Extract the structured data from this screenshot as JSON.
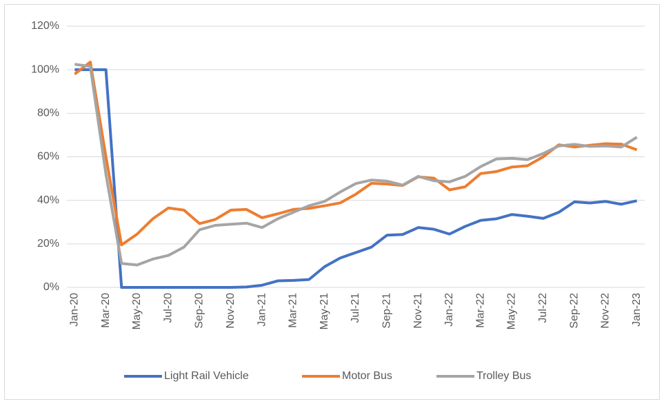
{
  "chart_data": {
    "type": "line",
    "categories": [
      "Jan-20",
      null,
      "Mar-20",
      null,
      "May-20",
      null,
      "Jul-20",
      null,
      "Sep-20",
      null,
      "Nov-20",
      null,
      "Jan-21",
      null,
      "Mar-21",
      null,
      "May-21",
      null,
      "Jul-21",
      null,
      "Sep-21",
      null,
      "Nov-21",
      null,
      "Jan-22",
      null,
      "Mar-22",
      null,
      "May-22",
      null,
      "Jul-22",
      null,
      "Sep-22",
      null,
      "Nov-22",
      null,
      "Jan-23"
    ],
    "series": [
      {
        "name": "Light Rail Vehicle",
        "color": "#4472c4",
        "values": [
          100,
          100,
          100,
          0,
          0,
          0,
          0,
          0,
          0,
          0,
          0,
          0.2,
          1,
          3,
          3.2,
          3.6,
          9.5,
          13.5,
          16,
          18.5,
          24,
          24.3,
          27.5,
          26.7,
          24.5,
          28,
          30.8,
          31.5,
          33.5,
          32.7,
          31.7,
          34.5,
          39.3,
          38.8,
          39.5,
          38.2,
          39.8
        ]
      },
      {
        "name": "Motor Bus",
        "color": "#ed7d31",
        "values": [
          98,
          103.5,
          60,
          19.5,
          24.5,
          31.5,
          36.5,
          35.5,
          29.3,
          31.2,
          35.5,
          35.8,
          32,
          33.8,
          35.8,
          36.3,
          37.5,
          38.8,
          42.8,
          47.8,
          47.5,
          46.8,
          50.8,
          50.2,
          44.8,
          46.2,
          52.3,
          53.2,
          55.3,
          55.9,
          60,
          65.5,
          64.5,
          65.3,
          66,
          65.8,
          63.2
        ]
      },
      {
        "name": "Trolley Bus",
        "color": "#a5a5a5",
        "values": [
          102.5,
          101.5,
          52,
          11,
          10.3,
          13,
          14.7,
          18.5,
          26.5,
          28.5,
          29,
          29.5,
          27.5,
          31.5,
          34.5,
          37.5,
          39.5,
          43.8,
          47.7,
          49.3,
          48.8,
          47,
          51,
          49,
          48.5,
          51,
          55.5,
          59,
          59.3,
          58.7,
          61.5,
          65,
          65.7,
          64.8,
          65,
          64.5,
          69
        ]
      }
    ],
    "ylim": [
      0,
      120
    ],
    "yticks": [
      {
        "value": 0,
        "label": "0%"
      },
      {
        "value": 20,
        "label": "20%"
      },
      {
        "value": 40,
        "label": "40%"
      },
      {
        "value": 60,
        "label": "60%"
      },
      {
        "value": 80,
        "label": "80%"
      },
      {
        "value": 100,
        "label": "100%"
      },
      {
        "value": 120,
        "label": "120%"
      }
    ],
    "grid": true,
    "legend": "bottom"
  }
}
